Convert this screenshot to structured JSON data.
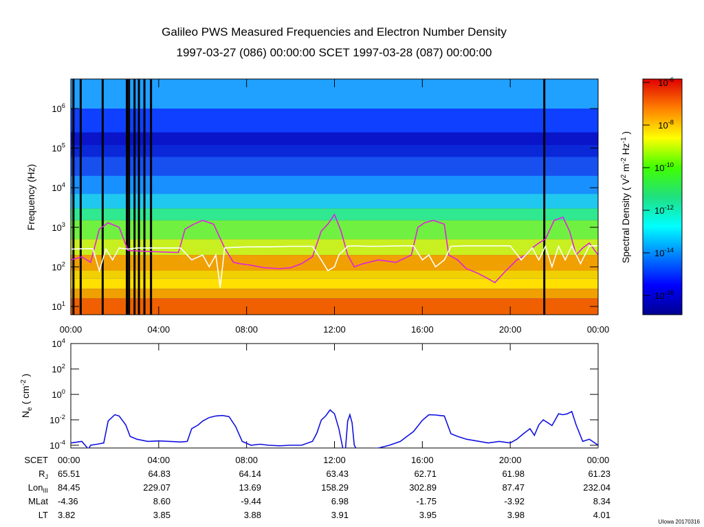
{
  "title": {
    "line1": "Galileo PWS Measured Frequencies and Electron Number Density",
    "line2": "1997-03-27 (086) 00:00:00 SCET 1997-03-28 (087) 00:00:00"
  },
  "credit": "UIowa 20170316",
  "chart_data": [
    {
      "type": "heatmap",
      "name": "spectrogram",
      "ylabel": "Frequency (Hz)",
      "yscale": "log",
      "ylim": [
        5,
        6000000
      ],
      "y_ticks": [
        "10^1",
        "10^2",
        "10^3",
        "10^4",
        "10^5",
        "10^6"
      ],
      "x_ticks": [
        "00:00",
        "04:00",
        "08:00",
        "12:00",
        "16:00",
        "20:00",
        "00:00"
      ],
      "x_range_hours": [
        0,
        24
      ],
      "colorbar": {
        "label": "Spectral Density ( V^2 m^-2 Hz^-1 )",
        "range": [
          1e-17,
          1e-06
        ],
        "ticks": [
          "10^-6",
          "10^-8",
          "10^-10",
          "10^-12",
          "10^-14",
          "10^-16"
        ]
      },
      "data_gaps_hours": [
        0.12,
        0.45,
        1.45,
        2.55,
        2.65,
        2.9,
        3.1,
        3.35,
        3.65,
        21.55
      ],
      "series": [
        {
          "name": "magenta upper-hybrid trace (Hz)",
          "x": [
            0,
            0.5,
            0.9,
            1.3,
            1.7,
            2.2,
            2.6,
            3.2,
            4.0,
            4.9,
            5.2,
            5.6,
            6.0,
            6.5,
            7.0,
            7.4,
            7.7,
            8.2,
            8.8,
            9.5,
            10.0,
            10.5,
            11.0,
            11.4,
            11.7,
            12.0,
            12.3,
            12.6,
            12.9,
            13.3,
            14.0,
            14.8,
            15.5,
            15.8,
            16.1,
            16.5,
            17.0,
            17.2,
            17.6,
            18.0,
            18.5,
            19.0,
            19.3,
            19.8,
            20.3,
            20.7,
            21.0,
            21.3,
            21.6,
            22.0,
            22.4,
            22.7,
            23.0,
            23.3,
            23.6,
            24.0
          ],
          "values": [
            150,
            180,
            130,
            900,
            1300,
            1000,
            260,
            250,
            240,
            230,
            900,
            1200,
            1500,
            1200,
            300,
            130,
            120,
            110,
            95,
            90,
            95,
            120,
            180,
            800,
            1200,
            2100,
            800,
            200,
            100,
            120,
            150,
            130,
            200,
            1000,
            1300,
            1500,
            1200,
            200,
            150,
            90,
            70,
            50,
            40,
            80,
            150,
            200,
            300,
            400,
            500,
            1500,
            1800,
            800,
            200,
            300,
            400,
            200
          ]
        },
        {
          "name": "white plasma-frequency trace (Hz)",
          "x": [
            0,
            1.0,
            1.3,
            1.6,
            1.9,
            2.2,
            2.6,
            3.0,
            4.0,
            5.0,
            5.5,
            6.0,
            6.3,
            6.6,
            6.8,
            7.0,
            7.4,
            8.0,
            9.0,
            10.0,
            11.0,
            11.4,
            11.7,
            12.0,
            12.2,
            12.6,
            12.9,
            13.5,
            14.0,
            15.0,
            15.6,
            16.0,
            16.3,
            16.6,
            17.0,
            17.3,
            18.0,
            19.0,
            20.0,
            20.5,
            21.0,
            21.3,
            21.6,
            21.9,
            22.2,
            22.5,
            22.8,
            23.2,
            23.6,
            24.0
          ],
          "values": [
            280,
            290,
            80,
            280,
            150,
            300,
            280,
            300,
            300,
            300,
            150,
            200,
            100,
            200,
            30,
            300,
            310,
            320,
            320,
            330,
            330,
            150,
            80,
            100,
            200,
            330,
            340,
            330,
            330,
            340,
            340,
            150,
            200,
            100,
            150,
            330,
            340,
            340,
            340,
            150,
            300,
            150,
            330,
            100,
            330,
            150,
            340,
            120,
            340,
            340
          ]
        }
      ]
    },
    {
      "type": "line",
      "name": "electron density",
      "ylabel": "N_e ( cm^-2 )",
      "yscale": "log",
      "ylim": [
        3e-05,
        10000
      ],
      "y_ticks": [
        "10^4",
        "10^2",
        "10^0",
        "10^-2",
        "10^-4"
      ],
      "x_range_hours": [
        0,
        24
      ],
      "series": [
        {
          "name": "Ne",
          "x": [
            0,
            0.3,
            0.5,
            0.8,
            0.9,
            1.2,
            1.5,
            1.7,
            2.0,
            2.2,
            2.5,
            2.7,
            3.0,
            3.5,
            4.0,
            4.5,
            5.0,
            5.3,
            5.5,
            5.8,
            6.0,
            6.3,
            6.6,
            6.9,
            7.2,
            7.5,
            7.8,
            8.2,
            8.6,
            9.0,
            9.5,
            10.0,
            10.5,
            11.0,
            11.2,
            11.4,
            11.6,
            11.8,
            12.0,
            12.2,
            12.4,
            12.5,
            12.6,
            12.7,
            12.8,
            12.9,
            13.0,
            13.5,
            14.0,
            14.5,
            15.0,
            15.3,
            15.6,
            16.0,
            16.3,
            16.6,
            17.0,
            17.3,
            17.6,
            18.0,
            19.0,
            19.5,
            20.0,
            20.3,
            20.6,
            20.9,
            21.1,
            21.3,
            21.5,
            21.7,
            21.9,
            22.2,
            22.4,
            22.6,
            22.8,
            23.0,
            23.3,
            23.6,
            24.0
          ],
          "values": [
            0.00015,
            0.00018,
            0.0002,
            5e-05,
            0.0001,
            0.00012,
            0.00015,
            0.008,
            0.025,
            0.02,
            0.004,
            0.0005,
            0.0003,
            0.0002,
            0.00022,
            0.0002,
            0.00018,
            0.0002,
            0.002,
            0.004,
            0.008,
            0.015,
            0.02,
            0.022,
            0.018,
            0.003,
            0.0002,
            0.0001,
            0.00012,
            0.0001,
            9e-05,
            0.0001,
            0.0001,
            0.0002,
            0.0009,
            0.0095,
            0.02,
            0.06,
            0.03,
            0.002,
            4e-05,
            5e-05,
            0.008,
            0.025,
            0.006,
            0.0001,
            5e-05,
            5e-05,
            6e-05,
            0.0001,
            0.0002,
            0.0005,
            0.0012,
            0.009,
            0.025,
            0.024,
            0.02,
            0.0008,
            0.0005,
            0.0003,
            0.00015,
            0.0002,
            0.00015,
            0.0003,
            0.0008,
            0.002,
            0.0006,
            0.004,
            0.01,
            0.006,
            0.0035,
            0.03,
            0.025,
            0.03,
            0.045,
            0.004,
            0.0002,
            0.0003,
            0.0001
          ]
        }
      ]
    }
  ],
  "ephemeris": {
    "row_labels": [
      "SCET",
      "R_J",
      "Lon_III",
      "MLat",
      "LT"
    ],
    "SCET": [
      "00:00",
      "04:00",
      "08:00",
      "12:00",
      "16:00",
      "20:00",
      "00:00"
    ],
    "R_J": [
      "65.51",
      "64.83",
      "64.14",
      "63.43",
      "62.71",
      "61.98",
      "61.23"
    ],
    "Lon_III": [
      "84.45",
      "229.07",
      "13.69",
      "158.29",
      "302.89",
      "87.47",
      "232.04"
    ],
    "MLat": [
      "-4.36",
      "8.60",
      "-9.44",
      "6.98",
      "-1.75",
      "-3.92",
      "8.34"
    ],
    "LT": [
      "3.82",
      "3.85",
      "3.88",
      "3.91",
      "3.95",
      "3.98",
      "4.01"
    ]
  }
}
